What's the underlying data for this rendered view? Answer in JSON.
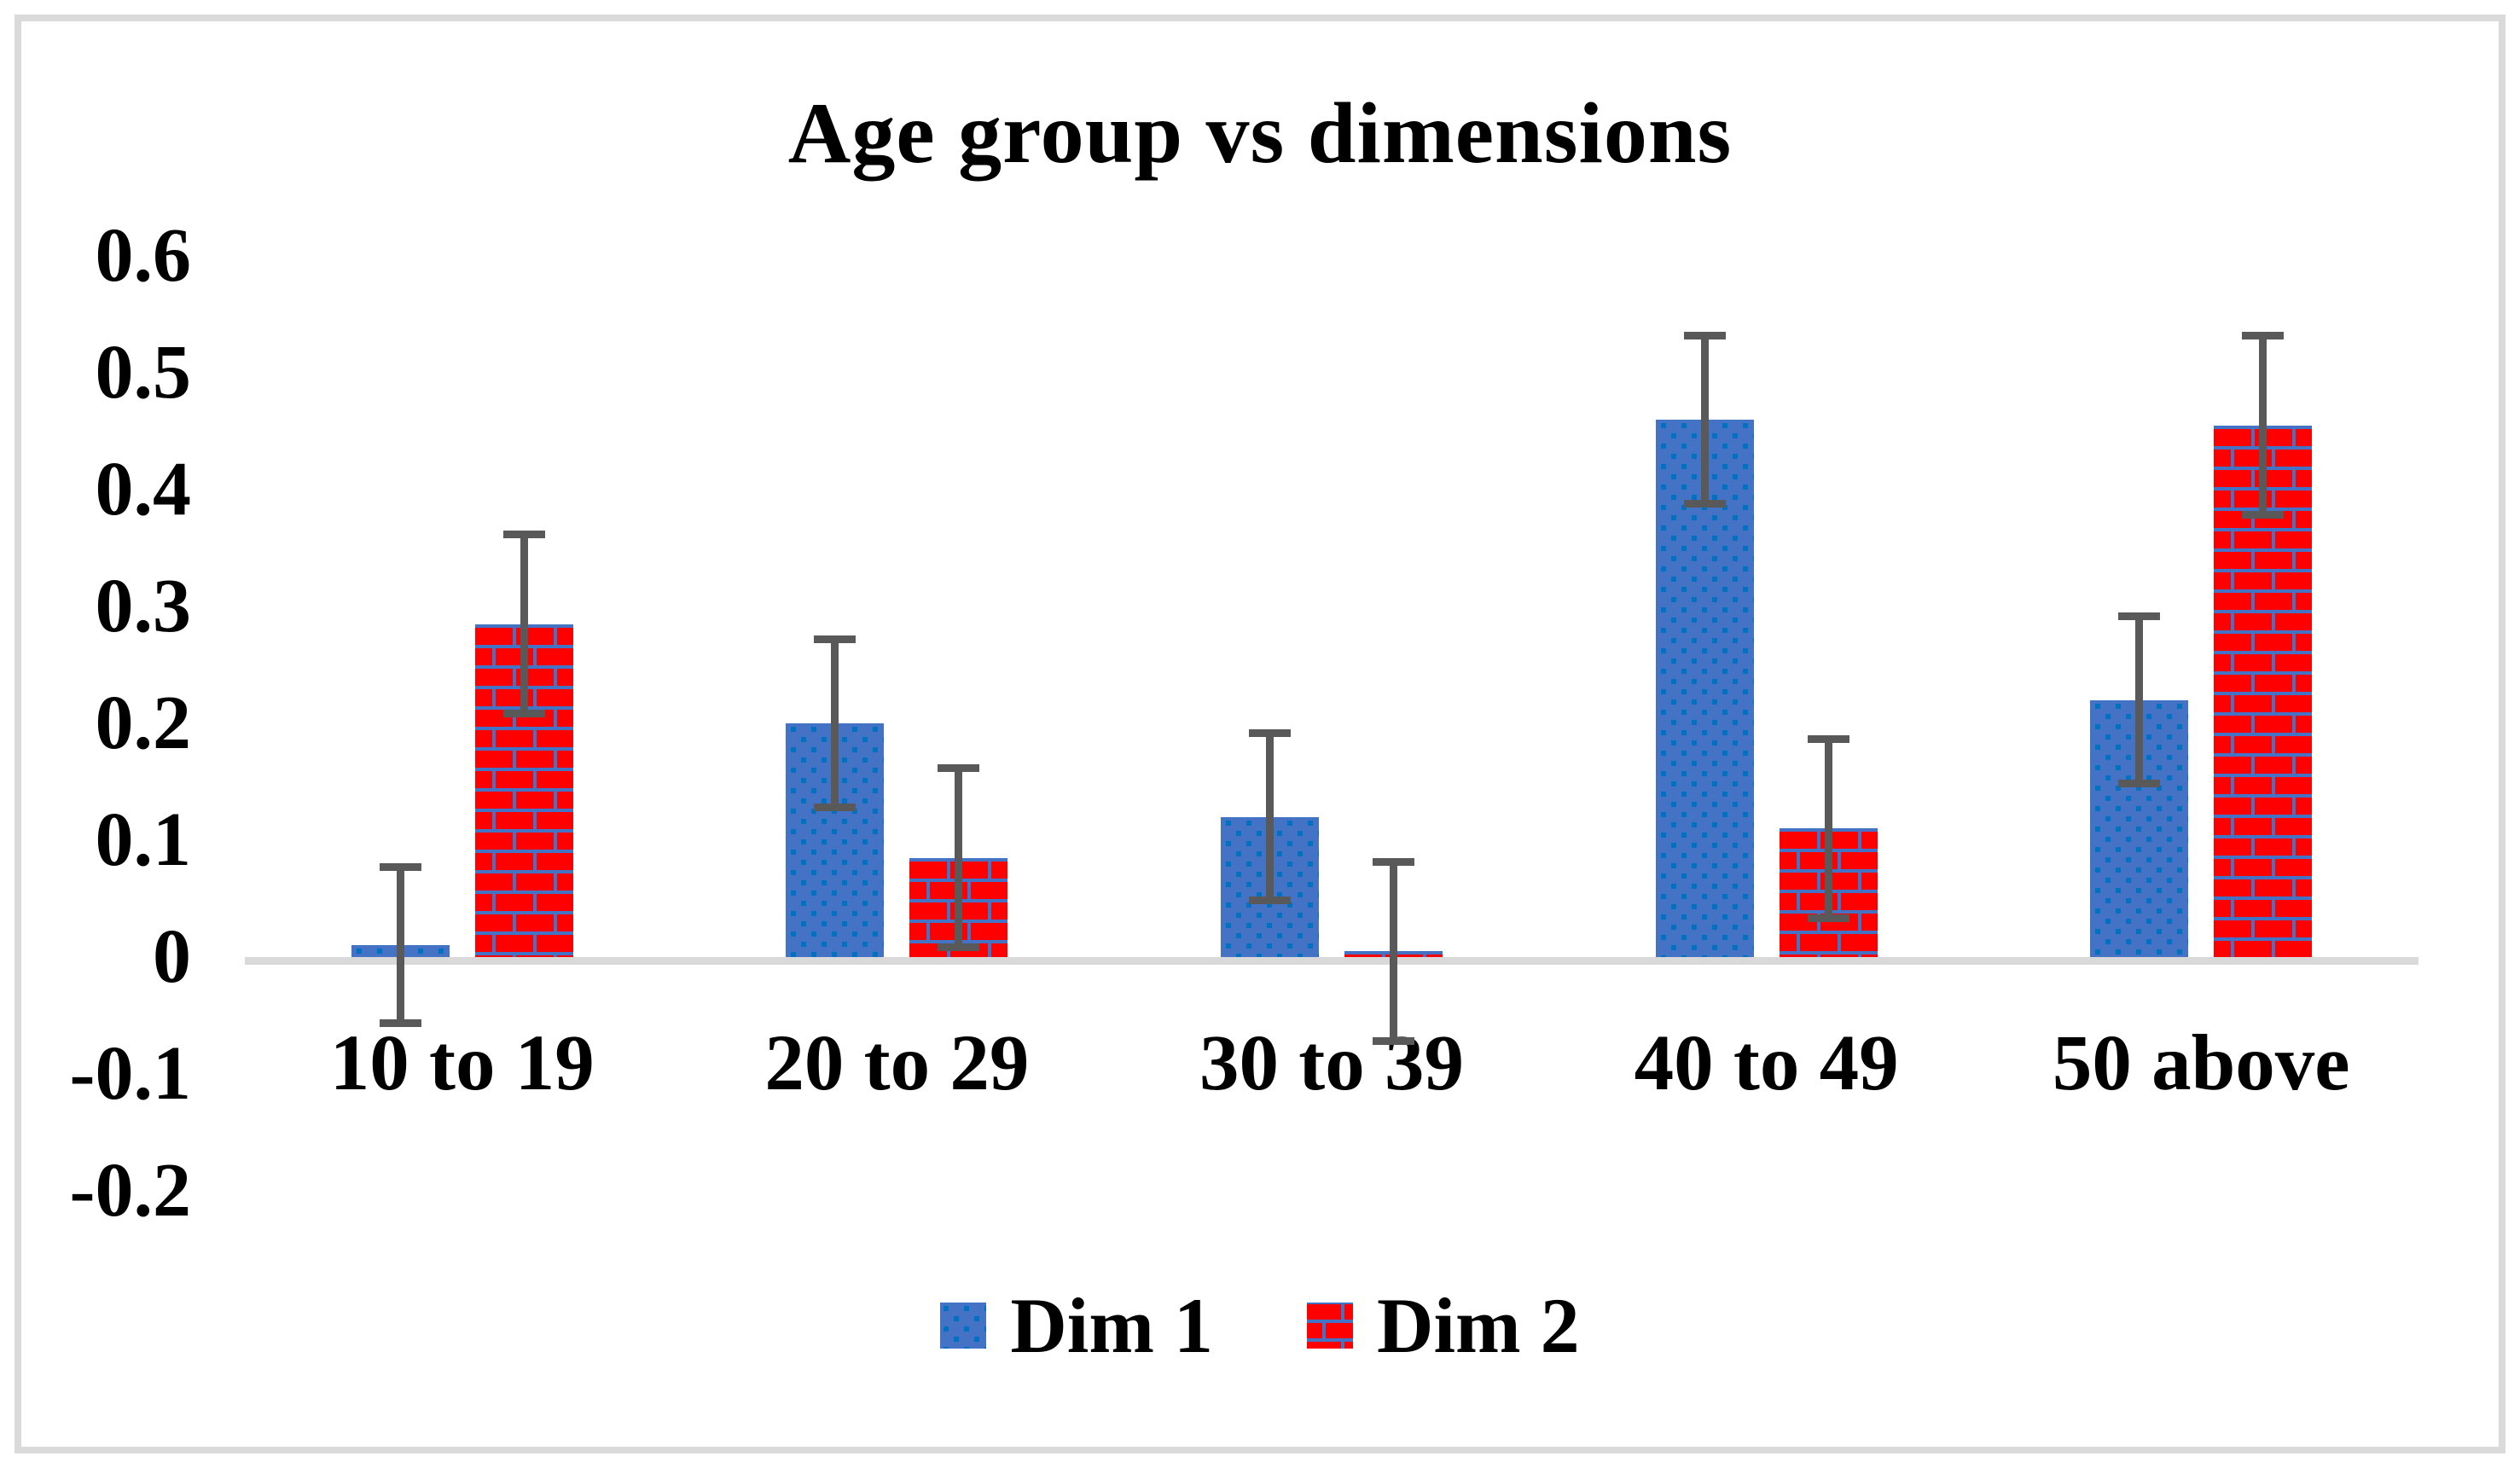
{
  "chart_data": {
    "type": "bar",
    "title": "Age group vs dimensions",
    "categories": [
      "10 to 19",
      "20 to 29",
      "30 to 39",
      "40 to 49",
      "50 above"
    ],
    "series": [
      {
        "name": "Dim 1",
        "pattern": "dotted-squares",
        "fill_color": "#4472C4",
        "pattern_color": "#0070C0",
        "values": [
          0.01,
          0.2,
          0.12,
          0.46,
          0.22
        ],
        "errors": [
          0.07,
          0.075,
          0.075,
          0.075,
          0.075
        ]
      },
      {
        "name": "Dim 2",
        "pattern": "bricks",
        "fill_color": "#FE0000",
        "pattern_color": "#4472C4",
        "values": [
          0.285,
          0.085,
          0.005,
          0.11,
          0.455
        ],
        "errors": [
          0.08,
          0.08,
          0.08,
          0.08,
          0.08
        ]
      }
    ],
    "y_tick_labels": [
      "0.6",
      "0.5",
      "0.4",
      "0.3",
      "0.2",
      "0.1",
      "0",
      "-0.1",
      "-0.2"
    ],
    "ylim": [
      -0.25,
      0.63
    ],
    "xlabel": "",
    "ylabel": "",
    "grid": "off",
    "legend_position": "bottom-center",
    "error_bar_color": "#595959",
    "axis_line_color": "#d9d9d9",
    "frame_color": "#dadada",
    "text_color": "#000000"
  }
}
